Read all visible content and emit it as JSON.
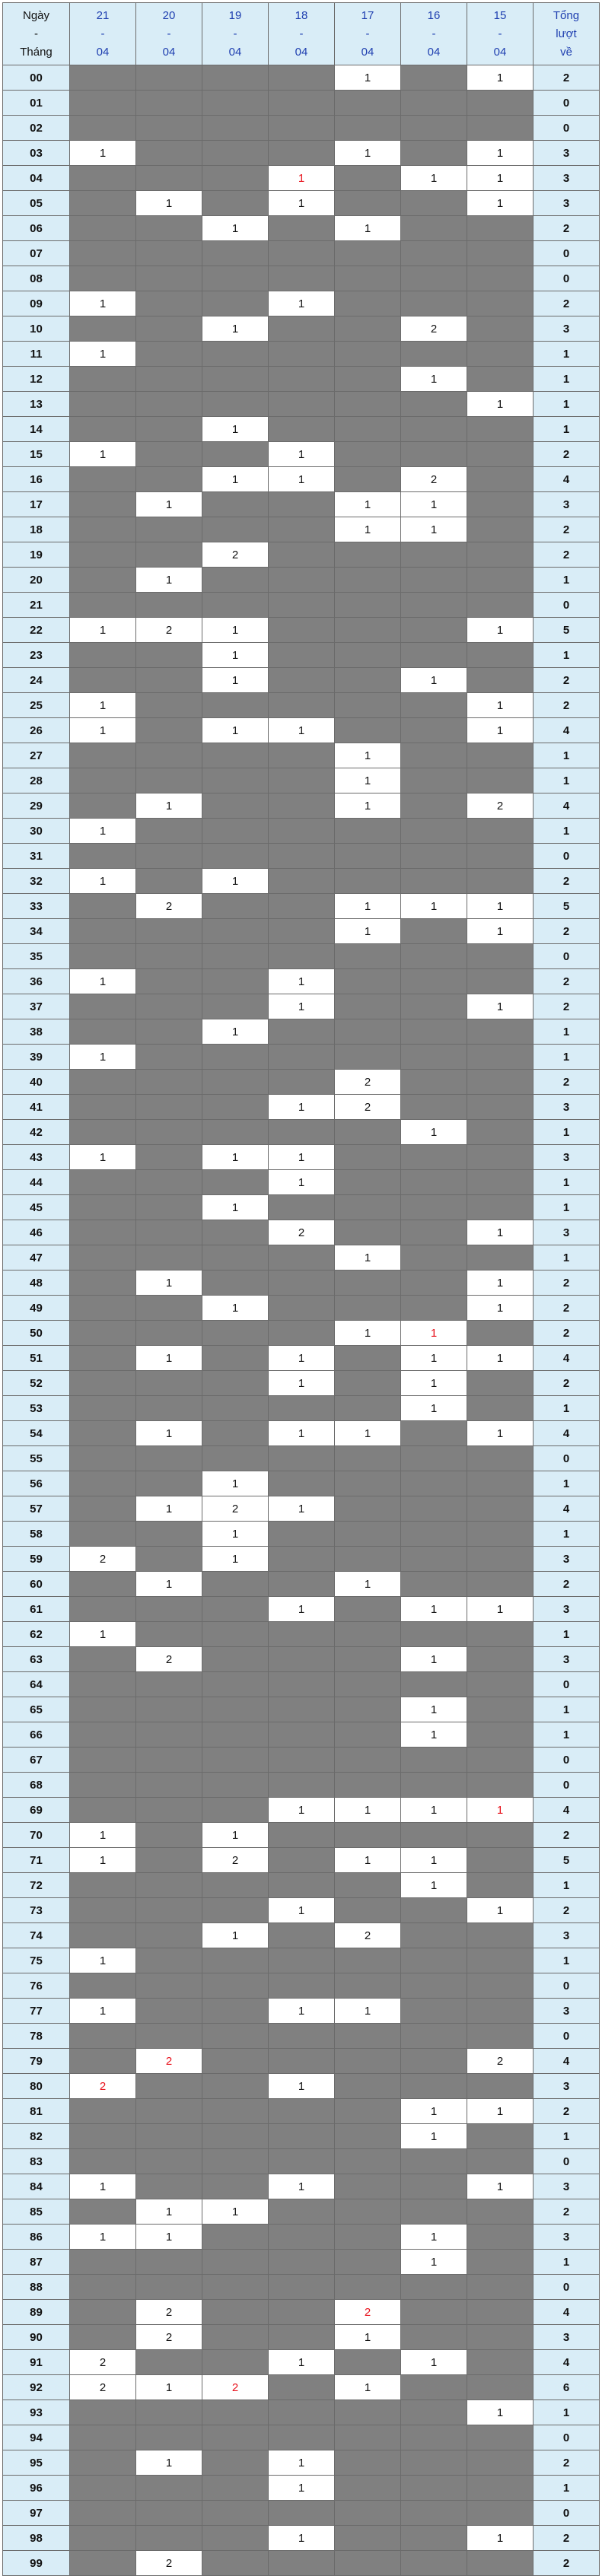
{
  "header": {
    "label": [
      "Ngày",
      "-",
      "Tháng"
    ],
    "dates": [
      [
        "21",
        "-",
        "04"
      ],
      [
        "20",
        "-",
        "04"
      ],
      [
        "19",
        "-",
        "04"
      ],
      [
        "18",
        "-",
        "04"
      ],
      [
        "17",
        "-",
        "04"
      ],
      [
        "16",
        "-",
        "04"
      ],
      [
        "15",
        "-",
        "04"
      ]
    ],
    "total": [
      "Tổng",
      "lượt",
      "về"
    ]
  },
  "colors": {
    "header_bg": "#d9edf7",
    "empty_cell": "#808080",
    "hit_cell": "#ffffff",
    "date_text": "#1f3fb0",
    "highlight_text": "#e8121c"
  },
  "rows": [
    {
      "n": "00",
      "c": [
        "",
        "",
        "",
        "",
        "1",
        "",
        "1"
      ],
      "t": "2"
    },
    {
      "n": "01",
      "c": [
        "",
        "",
        "",
        "",
        "",
        "",
        ""
      ],
      "t": "0"
    },
    {
      "n": "02",
      "c": [
        "",
        "",
        "",
        "",
        "",
        "",
        ""
      ],
      "t": "0"
    },
    {
      "n": "03",
      "c": [
        "1",
        "",
        "",
        "",
        "1",
        "",
        "1"
      ],
      "t": "3"
    },
    {
      "n": "04",
      "c": [
        "",
        "",
        "",
        "1",
        "",
        "1",
        "1"
      ],
      "t": "3",
      "red": [
        3
      ]
    },
    {
      "n": "05",
      "c": [
        "",
        "1",
        "",
        "1",
        "",
        "",
        "1"
      ],
      "t": "3"
    },
    {
      "n": "06",
      "c": [
        "",
        "",
        "1",
        "",
        "1",
        "",
        ""
      ],
      "t": "2"
    },
    {
      "n": "07",
      "c": [
        "",
        "",
        "",
        "",
        "",
        "",
        ""
      ],
      "t": "0"
    },
    {
      "n": "08",
      "c": [
        "",
        "",
        "",
        "",
        "",
        "",
        ""
      ],
      "t": "0"
    },
    {
      "n": "09",
      "c": [
        "1",
        "",
        "",
        "1",
        "",
        "",
        ""
      ],
      "t": "2"
    },
    {
      "n": "10",
      "c": [
        "",
        "",
        "1",
        "",
        "",
        "2",
        ""
      ],
      "t": "3"
    },
    {
      "n": "11",
      "c": [
        "1",
        "",
        "",
        "",
        "",
        "",
        ""
      ],
      "t": "1"
    },
    {
      "n": "12",
      "c": [
        "",
        "",
        "",
        "",
        "",
        "1",
        ""
      ],
      "t": "1"
    },
    {
      "n": "13",
      "c": [
        "",
        "",
        "",
        "",
        "",
        "",
        "1"
      ],
      "t": "1"
    },
    {
      "n": "14",
      "c": [
        "",
        "",
        "1",
        "",
        "",
        "",
        ""
      ],
      "t": "1"
    },
    {
      "n": "15",
      "c": [
        "1",
        "",
        "",
        "1",
        "",
        "",
        ""
      ],
      "t": "2"
    },
    {
      "n": "16",
      "c": [
        "",
        "",
        "1",
        "1",
        "",
        "2",
        ""
      ],
      "t": "4"
    },
    {
      "n": "17",
      "c": [
        "",
        "1",
        "",
        "",
        "1",
        "1",
        ""
      ],
      "t": "3"
    },
    {
      "n": "18",
      "c": [
        "",
        "",
        "",
        "",
        "1",
        "1",
        ""
      ],
      "t": "2"
    },
    {
      "n": "19",
      "c": [
        "",
        "",
        "2",
        "",
        "",
        "",
        ""
      ],
      "t": "2"
    },
    {
      "n": "20",
      "c": [
        "",
        "1",
        "",
        "",
        "",
        "",
        ""
      ],
      "t": "1"
    },
    {
      "n": "21",
      "c": [
        "",
        "",
        "",
        "",
        "",
        "",
        ""
      ],
      "t": "0"
    },
    {
      "n": "22",
      "c": [
        "1",
        "2",
        "1",
        "",
        "",
        "",
        "1"
      ],
      "t": "5"
    },
    {
      "n": "23",
      "c": [
        "",
        "",
        "1",
        "",
        "",
        "",
        ""
      ],
      "t": "1"
    },
    {
      "n": "24",
      "c": [
        "",
        "",
        "1",
        "",
        "",
        "1",
        ""
      ],
      "t": "2"
    },
    {
      "n": "25",
      "c": [
        "1",
        "",
        "",
        "",
        "",
        "",
        "1"
      ],
      "t": "2"
    },
    {
      "n": "26",
      "c": [
        "1",
        "",
        "1",
        "1",
        "",
        "",
        "1"
      ],
      "t": "4"
    },
    {
      "n": "27",
      "c": [
        "",
        "",
        "",
        "",
        "1",
        "",
        ""
      ],
      "t": "1"
    },
    {
      "n": "28",
      "c": [
        "",
        "",
        "",
        "",
        "1",
        "",
        ""
      ],
      "t": "1"
    },
    {
      "n": "29",
      "c": [
        "",
        "1",
        "",
        "",
        "1",
        "",
        "2"
      ],
      "t": "4"
    },
    {
      "n": "30",
      "c": [
        "1",
        "",
        "",
        "",
        "",
        "",
        ""
      ],
      "t": "1"
    },
    {
      "n": "31",
      "c": [
        "",
        "",
        "",
        "",
        "",
        "",
        ""
      ],
      "t": "0"
    },
    {
      "n": "32",
      "c": [
        "1",
        "",
        "1",
        "",
        "",
        "",
        ""
      ],
      "t": "2"
    },
    {
      "n": "33",
      "c": [
        "",
        "2",
        "",
        "",
        "1",
        "1",
        "1"
      ],
      "t": "5"
    },
    {
      "n": "34",
      "c": [
        "",
        "",
        "",
        "",
        "1",
        "",
        "1"
      ],
      "t": "2"
    },
    {
      "n": "35",
      "c": [
        "",
        "",
        "",
        "",
        "",
        "",
        ""
      ],
      "t": "0"
    },
    {
      "n": "36",
      "c": [
        "1",
        "",
        "",
        "1",
        "",
        "",
        ""
      ],
      "t": "2"
    },
    {
      "n": "37",
      "c": [
        "",
        "",
        "",
        "1",
        "",
        "",
        "1"
      ],
      "t": "2"
    },
    {
      "n": "38",
      "c": [
        "",
        "",
        "1",
        "",
        "",
        "",
        ""
      ],
      "t": "1"
    },
    {
      "n": "39",
      "c": [
        "1",
        "",
        "",
        "",
        "",
        "",
        ""
      ],
      "t": "1"
    },
    {
      "n": "40",
      "c": [
        "",
        "",
        "",
        "",
        "2",
        "",
        ""
      ],
      "t": "2"
    },
    {
      "n": "41",
      "c": [
        "",
        "",
        "",
        "1",
        "2",
        "",
        ""
      ],
      "t": "3"
    },
    {
      "n": "42",
      "c": [
        "",
        "",
        "",
        "",
        "",
        "1",
        ""
      ],
      "t": "1"
    },
    {
      "n": "43",
      "c": [
        "1",
        "",
        "1",
        "1",
        "",
        "",
        ""
      ],
      "t": "3"
    },
    {
      "n": "44",
      "c": [
        "",
        "",
        "",
        "1",
        "",
        "",
        ""
      ],
      "t": "1"
    },
    {
      "n": "45",
      "c": [
        "",
        "",
        "1",
        "",
        "",
        "",
        ""
      ],
      "t": "1"
    },
    {
      "n": "46",
      "c": [
        "",
        "",
        "",
        "2",
        "",
        "",
        "1"
      ],
      "t": "3"
    },
    {
      "n": "47",
      "c": [
        "",
        "",
        "",
        "",
        "1",
        "",
        ""
      ],
      "t": "1"
    },
    {
      "n": "48",
      "c": [
        "",
        "1",
        "",
        "",
        "",
        "",
        "1"
      ],
      "t": "2"
    },
    {
      "n": "49",
      "c": [
        "",
        "",
        "1",
        "",
        "",
        "",
        "1"
      ],
      "t": "2"
    },
    {
      "n": "50",
      "c": [
        "",
        "",
        "",
        "",
        "1",
        "1",
        ""
      ],
      "t": "2",
      "red": [
        5
      ]
    },
    {
      "n": "51",
      "c": [
        "",
        "1",
        "",
        "1",
        "",
        "1",
        "1"
      ],
      "t": "4"
    },
    {
      "n": "52",
      "c": [
        "",
        "",
        "",
        "1",
        "",
        "1",
        ""
      ],
      "t": "2"
    },
    {
      "n": "53",
      "c": [
        "",
        "",
        "",
        "",
        "",
        "1",
        ""
      ],
      "t": "1"
    },
    {
      "n": "54",
      "c": [
        "",
        "1",
        "",
        "1",
        "1",
        "",
        "1"
      ],
      "t": "4"
    },
    {
      "n": "55",
      "c": [
        "",
        "",
        "",
        "",
        "",
        "",
        ""
      ],
      "t": "0"
    },
    {
      "n": "56",
      "c": [
        "",
        "",
        "1",
        "",
        "",
        "",
        ""
      ],
      "t": "1"
    },
    {
      "n": "57",
      "c": [
        "",
        "1",
        "2",
        "1",
        "",
        "",
        ""
      ],
      "t": "4"
    },
    {
      "n": "58",
      "c": [
        "",
        "",
        "1",
        "",
        "",
        "",
        ""
      ],
      "t": "1"
    },
    {
      "n": "59",
      "c": [
        "2",
        "",
        "1",
        "",
        "",
        "",
        ""
      ],
      "t": "3"
    },
    {
      "n": "60",
      "c": [
        "",
        "1",
        "",
        "",
        "1",
        "",
        ""
      ],
      "t": "2"
    },
    {
      "n": "61",
      "c": [
        "",
        "",
        "",
        "1",
        "",
        "1",
        "1"
      ],
      "t": "3"
    },
    {
      "n": "62",
      "c": [
        "1",
        "",
        "",
        "",
        "",
        "",
        ""
      ],
      "t": "1"
    },
    {
      "n": "63",
      "c": [
        "",
        "2",
        "",
        "",
        "",
        "1",
        ""
      ],
      "t": "3"
    },
    {
      "n": "64",
      "c": [
        "",
        "",
        "",
        "",
        "",
        "",
        ""
      ],
      "t": "0"
    },
    {
      "n": "65",
      "c": [
        "",
        "",
        "",
        "",
        "",
        "1",
        ""
      ],
      "t": "1"
    },
    {
      "n": "66",
      "c": [
        "",
        "",
        "",
        "",
        "",
        "1",
        ""
      ],
      "t": "1"
    },
    {
      "n": "67",
      "c": [
        "",
        "",
        "",
        "",
        "",
        "",
        ""
      ],
      "t": "0"
    },
    {
      "n": "68",
      "c": [
        "",
        "",
        "",
        "",
        "",
        "",
        ""
      ],
      "t": "0"
    },
    {
      "n": "69",
      "c": [
        "",
        "",
        "",
        "1",
        "1",
        "1",
        "1"
      ],
      "t": "4",
      "red": [
        6
      ]
    },
    {
      "n": "70",
      "c": [
        "1",
        "",
        "1",
        "",
        "",
        "",
        ""
      ],
      "t": "2"
    },
    {
      "n": "71",
      "c": [
        "1",
        "",
        "2",
        "",
        "1",
        "1",
        ""
      ],
      "t": "5"
    },
    {
      "n": "72",
      "c": [
        "",
        "",
        "",
        "",
        "",
        "1",
        ""
      ],
      "t": "1"
    },
    {
      "n": "73",
      "c": [
        "",
        "",
        "",
        "1",
        "",
        "",
        "1"
      ],
      "t": "2"
    },
    {
      "n": "74",
      "c": [
        "",
        "",
        "1",
        "",
        "2",
        "",
        ""
      ],
      "t": "3"
    },
    {
      "n": "75",
      "c": [
        "1",
        "",
        "",
        "",
        "",
        "",
        ""
      ],
      "t": "1"
    },
    {
      "n": "76",
      "c": [
        "",
        "",
        "",
        "",
        "",
        "",
        ""
      ],
      "t": "0"
    },
    {
      "n": "77",
      "c": [
        "1",
        "",
        "",
        "1",
        "1",
        "",
        ""
      ],
      "t": "3"
    },
    {
      "n": "78",
      "c": [
        "",
        "",
        "",
        "",
        "",
        "",
        ""
      ],
      "t": "0"
    },
    {
      "n": "79",
      "c": [
        "",
        "2",
        "",
        "",
        "",
        "",
        "2"
      ],
      "t": "4",
      "red": [
        1
      ]
    },
    {
      "n": "80",
      "c": [
        "2",
        "",
        "",
        "1",
        "",
        "",
        ""
      ],
      "t": "3",
      "red": [
        0
      ]
    },
    {
      "n": "81",
      "c": [
        "",
        "",
        "",
        "",
        "",
        "1",
        "1"
      ],
      "t": "2"
    },
    {
      "n": "82",
      "c": [
        "",
        "",
        "",
        "",
        "",
        "1",
        ""
      ],
      "t": "1"
    },
    {
      "n": "83",
      "c": [
        "",
        "",
        "",
        "",
        "",
        "",
        ""
      ],
      "t": "0"
    },
    {
      "n": "84",
      "c": [
        "1",
        "",
        "",
        "1",
        "",
        "",
        "1"
      ],
      "t": "3"
    },
    {
      "n": "85",
      "c": [
        "",
        "1",
        "1",
        "",
        "",
        "",
        ""
      ],
      "t": "2"
    },
    {
      "n": "86",
      "c": [
        "1",
        "1",
        "",
        "",
        "",
        "1",
        ""
      ],
      "t": "3"
    },
    {
      "n": "87",
      "c": [
        "",
        "",
        "",
        "",
        "",
        "1",
        ""
      ],
      "t": "1"
    },
    {
      "n": "88",
      "c": [
        "",
        "",
        "",
        "",
        "",
        "",
        ""
      ],
      "t": "0"
    },
    {
      "n": "89",
      "c": [
        "",
        "2",
        "",
        "",
        "2",
        "",
        ""
      ],
      "t": "4",
      "red": [
        4
      ]
    },
    {
      "n": "90",
      "c": [
        "",
        "2",
        "",
        "",
        "1",
        "",
        ""
      ],
      "t": "3"
    },
    {
      "n": "91",
      "c": [
        "2",
        "",
        "",
        "1",
        "",
        "1",
        ""
      ],
      "t": "4"
    },
    {
      "n": "92",
      "c": [
        "2",
        "1",
        "2",
        "",
        "1",
        "",
        ""
      ],
      "t": "6",
      "red": [
        2
      ]
    },
    {
      "n": "93",
      "c": [
        "",
        "",
        "",
        "",
        "",
        "",
        "1"
      ],
      "t": "1"
    },
    {
      "n": "94",
      "c": [
        "",
        "",
        "",
        "",
        "",
        "",
        ""
      ],
      "t": "0"
    },
    {
      "n": "95",
      "c": [
        "",
        "1",
        "",
        "1",
        "",
        "",
        ""
      ],
      "t": "2"
    },
    {
      "n": "96",
      "c": [
        "",
        "",
        "",
        "1",
        "",
        "",
        ""
      ],
      "t": "1"
    },
    {
      "n": "97",
      "c": [
        "",
        "",
        "",
        "",
        "",
        "",
        ""
      ],
      "t": "0"
    },
    {
      "n": "98",
      "c": [
        "",
        "",
        "",
        "1",
        "",
        "",
        "1"
      ],
      "t": "2"
    },
    {
      "n": "99",
      "c": [
        "",
        "2",
        "",
        "",
        "",
        "",
        ""
      ],
      "t": "2"
    }
  ]
}
